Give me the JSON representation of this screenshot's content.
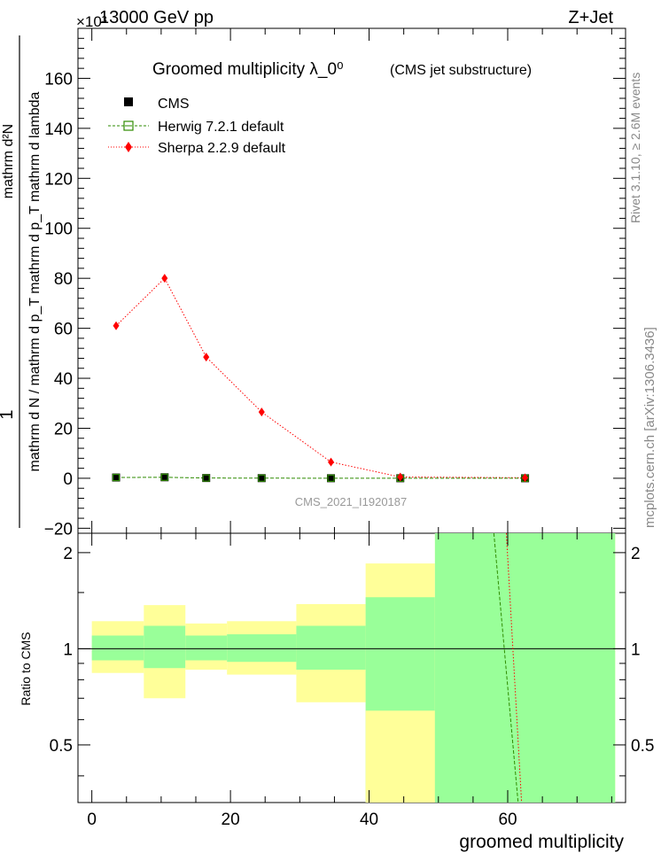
{
  "header": {
    "energy": "13000 GeV pp",
    "process": "Z+Jet",
    "exponent": "×10³"
  },
  "side": {
    "rivet": "Rivet 3.1.10, ≥ 2.6M events",
    "mcplots": "mcplots.cern.ch [arXiv:1306.3436]"
  },
  "chart_data": [
    {
      "type": "line",
      "title": "Groomed multiplicity  λ_0⁰",
      "subtitle": "(CMS jet substructure)",
      "watermark": "CMS_2021_I1920187",
      "ylabel_numerator": "1",
      "ylabel_denominator": "mathrm d N / mathrm d p_T mathrm d p_T mathrm d lambda",
      "ylabel_top": "mathrm d²N",
      "xlabel": "groomed multiplicity",
      "xlim": [
        -2,
        77
      ],
      "ylim": [
        -22,
        180
      ],
      "y_scale_note": "values ×10³",
      "yticks": [
        -20,
        0,
        20,
        40,
        60,
        80,
        100,
        120,
        140,
        160
      ],
      "ytick_labels": [
        "−20",
        "0",
        "20",
        "40",
        "60",
        "80",
        "100",
        "120",
        "140",
        "160"
      ],
      "legend": {
        "placement": "top-left",
        "entries": [
          "CMS",
          "Herwig 7.2.1 default",
          "Sherpa 2.2.9 default"
        ]
      },
      "x": [
        3.5,
        10.5,
        16.5,
        24.5,
        34.5,
        44.5,
        62.5
      ],
      "series": [
        {
          "name": "CMS",
          "values": [
            0.3,
            0.4,
            0.1,
            0.05,
            0.02,
            0.01,
            0.005
          ],
          "color": "#000000"
        },
        {
          "name": "Herwig 7.2.1 default",
          "values": [
            0.3,
            0.4,
            0.1,
            0.05,
            0.02,
            0.01,
            0.005
          ],
          "color": "#2e8b00"
        },
        {
          "name": "Sherpa 2.2.9 default",
          "values": [
            61,
            80,
            48.5,
            26.5,
            6.5,
            0.5,
            0.2
          ],
          "color": "#ff0000"
        }
      ]
    },
    {
      "type": "area",
      "ylabel": "Ratio to CMS",
      "xlabel": "groomed multiplicity",
      "xlim": [
        -2,
        77
      ],
      "ylim": [
        0.33,
        2.3
      ],
      "yscale": "log",
      "yticks": [
        0.5,
        1,
        2
      ],
      "ytick_labels": [
        "0.5",
        "1",
        "2"
      ],
      "xticks": [
        0,
        20,
        40,
        60
      ],
      "xtick_labels": [
        "0",
        "20",
        "40",
        "60"
      ],
      "bins": [
        {
          "lo": 0,
          "hi": 7.5,
          "stat": [
            0.92,
            1.1
          ],
          "total": [
            0.84,
            1.22
          ]
        },
        {
          "lo": 7.5,
          "hi": 13.5,
          "stat": [
            0.87,
            1.18
          ],
          "total": [
            0.7,
            1.37
          ]
        },
        {
          "lo": 13.5,
          "hi": 19.5,
          "stat": [
            0.92,
            1.1
          ],
          "total": [
            0.86,
            1.2
          ]
        },
        {
          "lo": 19.5,
          "hi": 29.5,
          "stat": [
            0.91,
            1.11
          ],
          "total": [
            0.83,
            1.22
          ]
        },
        {
          "lo": 29.5,
          "hi": 39.5,
          "stat": [
            0.86,
            1.18
          ],
          "total": [
            0.68,
            1.38
          ]
        },
        {
          "lo": 39.5,
          "hi": 49.5,
          "stat": [
            0.3,
            1.45
          ],
          "total": [
            0.3,
            1.85
          ],
          "total_lo_band": [
            0.3,
            0.64
          ]
        },
        {
          "lo": 49.5,
          "hi": 75.5,
          "stat": [
            0.3,
            2.5
          ],
          "total": [
            0.3,
            2.5
          ]
        }
      ],
      "series": [
        {
          "name": "Herwig 7.2.1 default",
          "color": "#2e8b00",
          "x": [
            58.0,
            61.5
          ],
          "values": [
            2.5,
            0.3
          ]
        },
        {
          "name": "Sherpa 2.2.9 default",
          "color": "#ff0000",
          "x": [
            59.8,
            62.0
          ],
          "values": [
            2.5,
            0.3
          ]
        }
      ]
    }
  ]
}
